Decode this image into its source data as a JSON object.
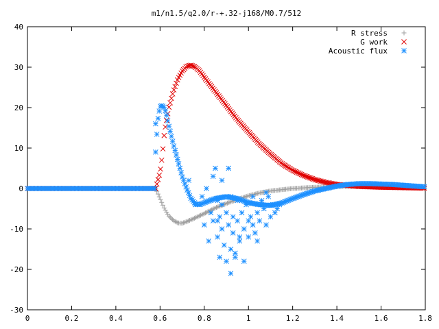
{
  "chart_data": {
    "type": "scatter",
    "title": "m1/n1.5/q2.0/r-+.32-j168/M0.7/512",
    "xlabel": "",
    "ylabel": "",
    "xlim": [
      0,
      1.8
    ],
    "ylim": [
      -30,
      40
    ],
    "xticks": [
      0,
      0.2,
      0.4,
      0.6,
      0.8,
      1,
      1.2,
      1.4,
      1.6,
      1.8
    ],
    "xtick_labels": [
      "0",
      "0.2",
      "0.4",
      "0.6",
      "0.8",
      "1",
      "1.2",
      "1.4",
      "1.6",
      "1.8"
    ],
    "yticks": [
      -30,
      -20,
      -10,
      0,
      10,
      20,
      30,
      40
    ],
    "ytick_labels": [
      "-30",
      "-20",
      "-10",
      "0",
      "10",
      "20",
      "30",
      "40"
    ],
    "grid": false,
    "legend_position": "top-right",
    "series": [
      {
        "name": "R stress",
        "marker": "+",
        "color": "#a0a0a0",
        "x": [
          0.58,
          0.6,
          0.62,
          0.64,
          0.66,
          0.68,
          0.7,
          0.72,
          0.75,
          0.8,
          0.85,
          0.9,
          0.95,
          1.0,
          1.05,
          1.1,
          1.15,
          1.2,
          1.3,
          1.4,
          1.5,
          1.6,
          1.7,
          1.8
        ],
        "y": [
          0,
          -2.5,
          -5,
          -6.8,
          -7.9,
          -8.5,
          -8.6,
          -8.2,
          -7.5,
          -6.2,
          -4.8,
          -3.7,
          -2.7,
          -1.8,
          -1.1,
          -0.6,
          -0.3,
          0,
          0.3,
          0.5,
          0.5,
          0.4,
          0.3,
          0.2
        ]
      },
      {
        "name": "G work",
        "marker": "x",
        "color": "#e00000",
        "x": [
          0.58,
          0.6,
          0.61,
          0.62,
          0.64,
          0.66,
          0.68,
          0.7,
          0.72,
          0.74,
          0.76,
          0.78,
          0.8,
          0.85,
          0.9,
          0.95,
          1.0,
          1.05,
          1.1,
          1.15,
          1.2,
          1.25,
          1.3,
          1.35,
          1.4,
          1.5,
          1.6,
          1.7,
          1.8
        ],
        "y": [
          0,
          4,
          8,
          14,
          20,
          24,
          27,
          29,
          30.2,
          30.5,
          30,
          29,
          27.5,
          24,
          20.5,
          17,
          14,
          11,
          8.5,
          6.2,
          4.5,
          3.2,
          2.2,
          1.5,
          1.0,
          0.5,
          0.3,
          0.2,
          0.1
        ]
      },
      {
        "name": "Acoustic flux",
        "marker": "*",
        "color": "#1e90ff",
        "x": [
          0.58,
          0.59,
          0.6,
          0.61,
          0.62,
          0.63,
          0.64,
          0.66,
          0.68,
          0.7,
          0.72,
          0.74,
          0.76,
          0.78,
          0.8,
          0.85,
          0.9,
          0.95,
          1.0,
          1.05,
          1.1,
          1.15,
          1.2,
          1.25,
          1.3,
          1.35,
          1.4,
          1.45,
          1.5,
          1.55,
          1.6,
          1.65,
          1.7,
          1.75,
          1.8
        ],
        "y": [
          9,
          17,
          20.3,
          20.5,
          20,
          18,
          15.5,
          11,
          7,
          3,
          0,
          -2.5,
          -3.8,
          -4,
          -3.5,
          -2.5,
          -2,
          -2.5,
          -3.5,
          -4,
          -4.2,
          -3.6,
          -2.5,
          -1.5,
          -0.6,
          0,
          0.6,
          1.0,
          1.2,
          1.2,
          1.1,
          1.0,
          0.8,
          0.6,
          0.4
        ],
        "scatter_x": [
          0.58,
          0.73,
          0.76,
          0.79,
          0.8,
          0.81,
          0.82,
          0.83,
          0.84,
          0.85,
          0.86,
          0.86,
          0.87,
          0.87,
          0.88,
          0.88,
          0.89,
          0.9,
          0.9,
          0.91,
          0.91,
          0.92,
          0.92,
          0.93,
          0.93,
          0.94,
          0.95,
          0.95,
          0.96,
          0.97,
          0.98,
          0.99,
          1.0,
          1.01,
          1.02,
          1.02,
          1.03,
          1.04,
          1.05,
          1.06,
          1.07,
          1.08,
          1.09,
          1.1,
          1.11,
          1.12,
          1.13,
          1.14,
          0.84,
          0.86,
          0.88,
          0.92,
          0.94,
          0.96,
          0.98,
          1.0,
          1.04,
          1.08
        ],
        "scatter_y": [
          16,
          2,
          -4,
          -2,
          -9,
          0,
          -13,
          -6,
          -8,
          5,
          -12,
          -3,
          -17,
          -7,
          -10,
          2,
          -14,
          -6,
          -18,
          5,
          -9,
          -21,
          -2,
          -11,
          -7,
          -16,
          -8,
          -3,
          -13,
          -6,
          -10,
          -4,
          -12,
          -7,
          -9,
          -2,
          -11,
          -6,
          -8,
          -3,
          -5,
          -9,
          -2,
          -7,
          -4,
          -6,
          -5,
          -4,
          3,
          -8,
          -4,
          -15,
          -17,
          -12,
          -18,
          -8,
          -13,
          -1
        ]
      }
    ]
  }
}
